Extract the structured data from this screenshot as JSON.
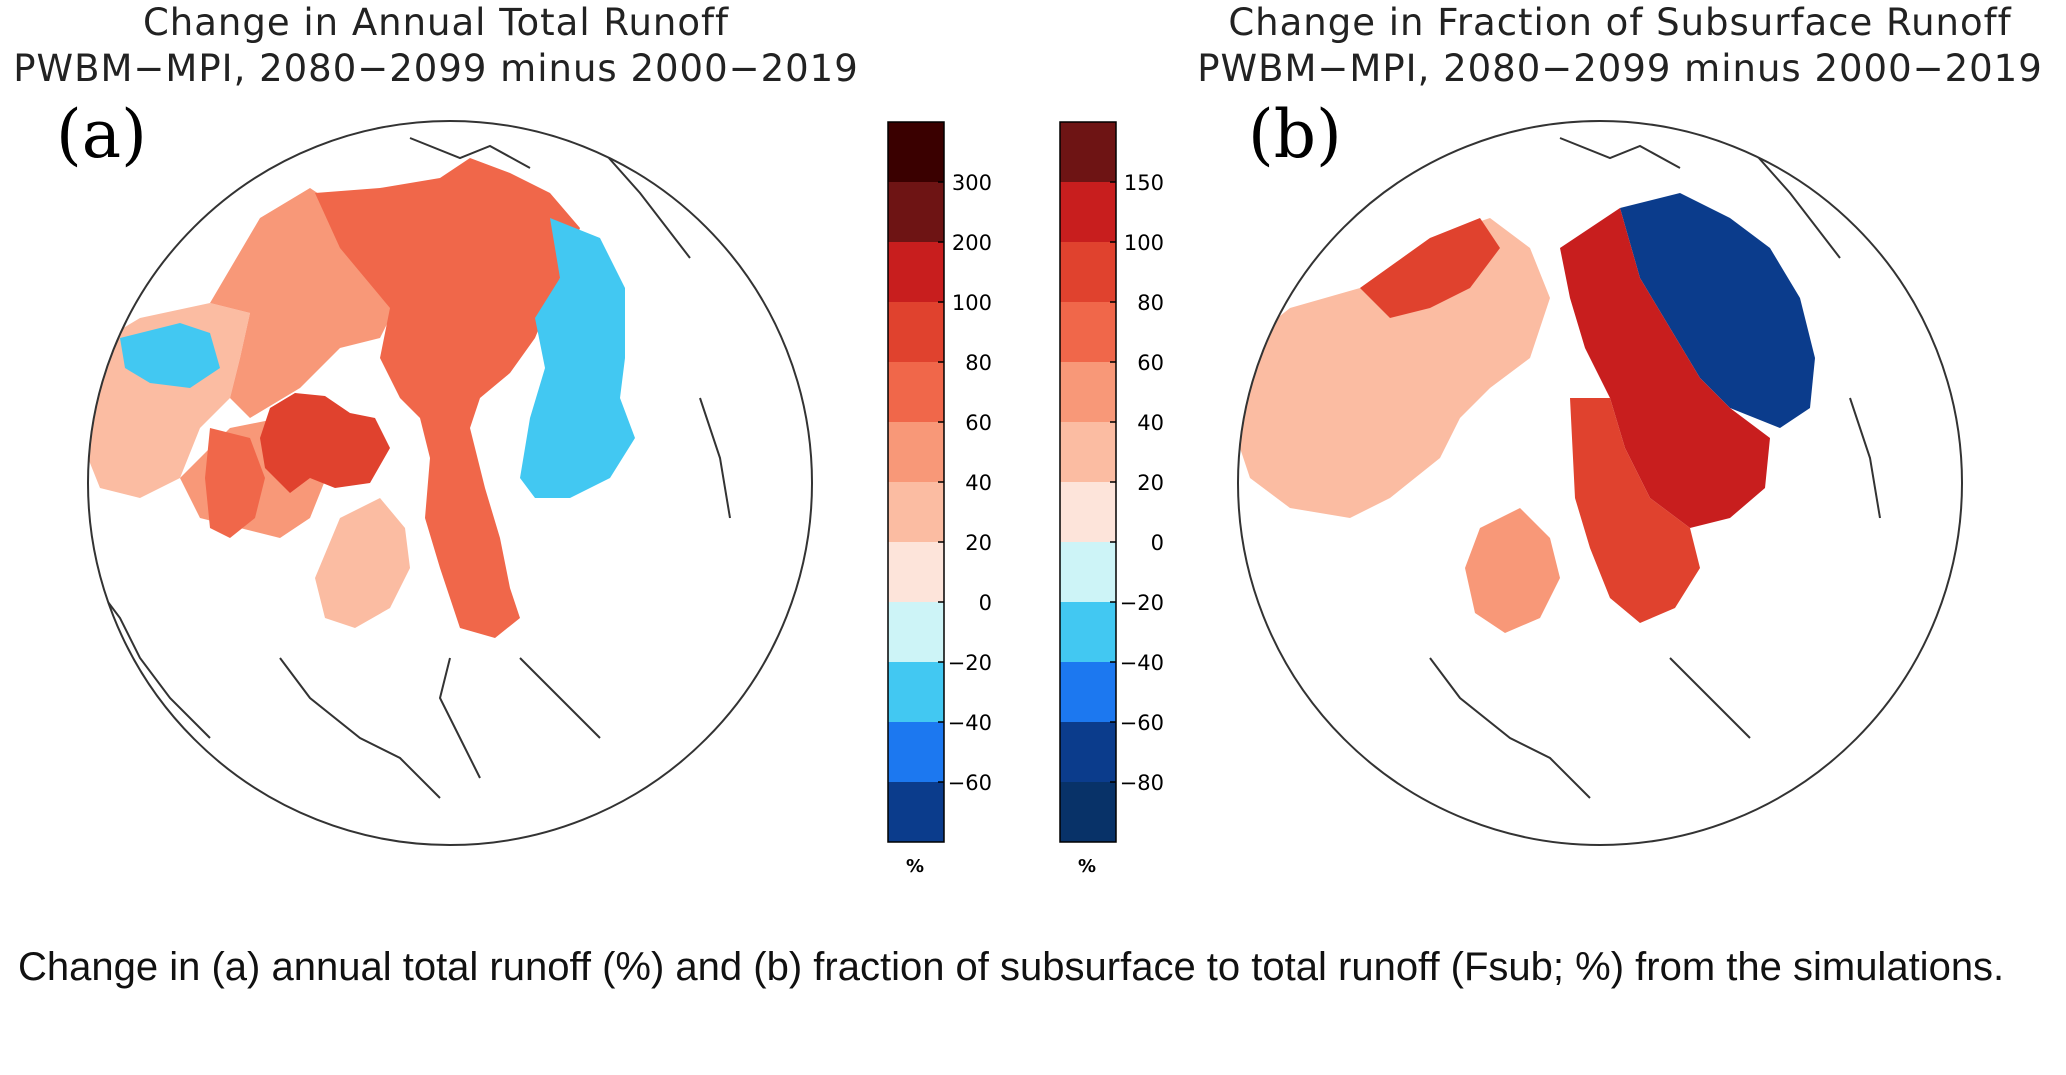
{
  "panel_a": {
    "title_line1": "Change in Annual Total Runoff",
    "title_line2": "PWBM−MPI, 2080−2099 minus 2000−2019",
    "letter": "(a)",
    "colorbar": {
      "unit": "%",
      "tick_labels": [
        "300",
        "200",
        "100",
        "80",
        "60",
        "40",
        "20",
        "0",
        "−20",
        "−40",
        "−60"
      ],
      "bin_colors": [
        "#3a0000",
        "#6e1414",
        "#c81e1e",
        "#e0422e",
        "#f0674a",
        "#f89878",
        "#fbbca2",
        "#fde4da",
        "#cdf4f7",
        "#42c8f2",
        "#1c78f0",
        "#0b3c8c"
      ]
    },
    "region_colors": {
      "ocean": "#ffffff",
      "coast": "#333333",
      "north_america_west": "#fbbca2",
      "north_america_central_east": "#f89878",
      "canadian_archipelago": "#e0422e",
      "greenland_coast": "#f0674a",
      "siberia": "#f0674a",
      "far_east": "#42c8f2",
      "europe": "#fbbca2",
      "alaska_patch": "#42c8f2"
    }
  },
  "panel_b": {
    "title_line1": "Change in Fraction of Subsurface Runoff",
    "title_line2": "PWBM−MPI, 2080−2099 minus 2000−2019",
    "letter": "(b)",
    "colorbar": {
      "unit": "%",
      "tick_labels": [
        "150",
        "100",
        "80",
        "60",
        "40",
        "20",
        "0",
        "−20",
        "−40",
        "−60",
        "−80"
      ],
      "bin_colors": [
        "#6e1414",
        "#c81e1e",
        "#e0422e",
        "#f0674a",
        "#f89878",
        "#fbbca2",
        "#fde4da",
        "#cdf4f7",
        "#42c8f2",
        "#1c78f0",
        "#0b3c8c",
        "#083268"
      ]
    },
    "region_colors": {
      "ocean": "#ffffff",
      "coast": "#333333",
      "north_america": "#fbbca2",
      "alaska": "#e0422e",
      "east_siberia": "#0b3c8c",
      "central_siberia": "#c81e1e",
      "west_siberia": "#e0422e",
      "europe": "#f89878"
    }
  },
  "caption": "Change in (a) annual total runoff (%) and (b) fraction of subsurface to total runoff (Fsub; %) from the simulations."
}
